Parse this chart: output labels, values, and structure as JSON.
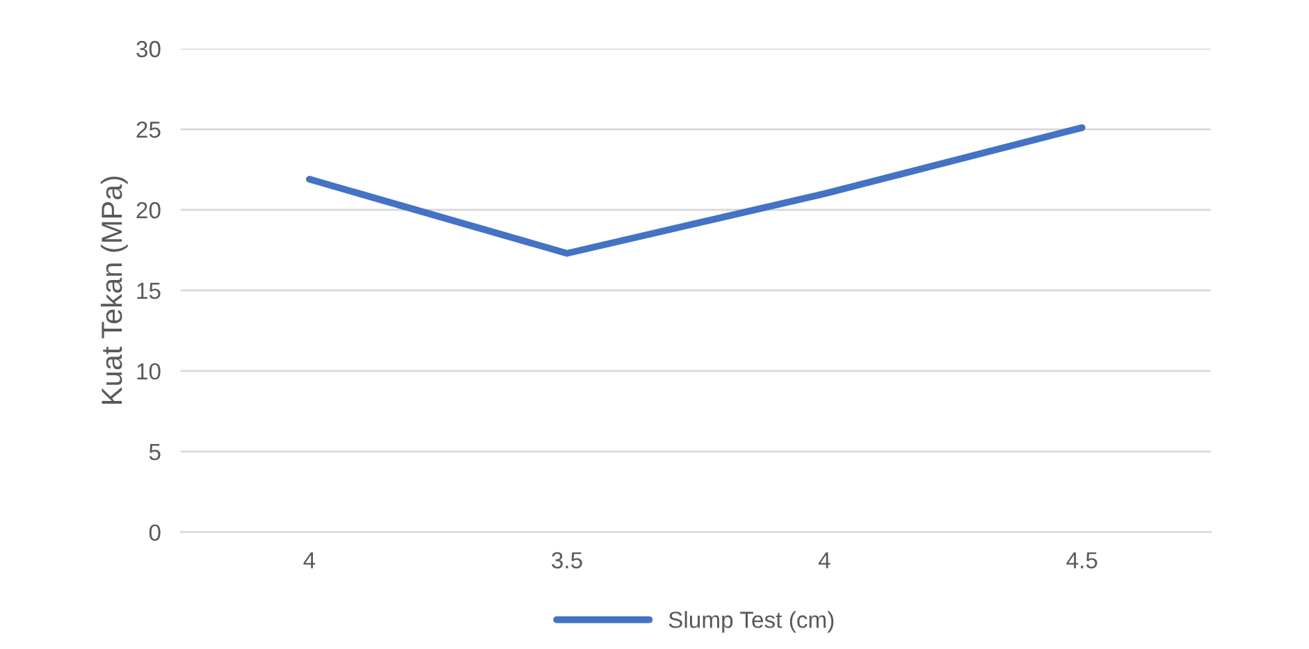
{
  "chart_data": {
    "type": "line",
    "ylabel": "Kuat Tekan (MPa)",
    "categories": [
      "4",
      "3.5",
      "4",
      "4.5"
    ],
    "series": [
      {
        "name": "Slump Test (cm)",
        "color": "#4472c4",
        "values": [
          21.9,
          17.3,
          21.0,
          25.1
        ]
      }
    ],
    "ylim": [
      0,
      30
    ],
    "yticks": [
      0,
      5,
      10,
      15,
      20,
      25,
      30
    ],
    "grid": "y",
    "legend": "bottom",
    "line_style": "solid",
    "marker": "none"
  }
}
